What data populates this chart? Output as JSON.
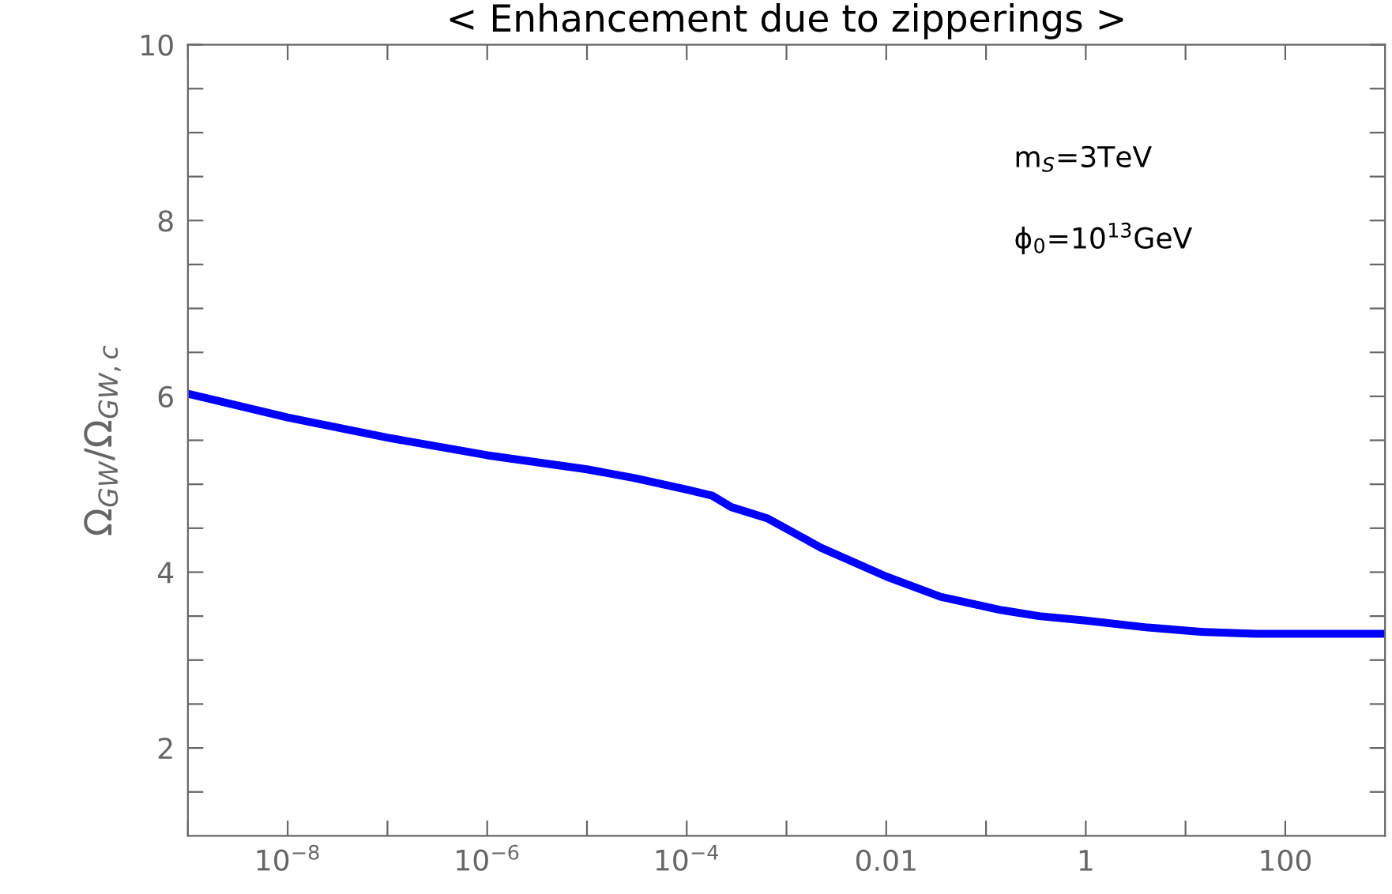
{
  "chart_data": {
    "type": "line",
    "title": "< Enhancement due to zipperings >",
    "ylabel": "Ω$_{GW}$/Ω$_{GW,c}$",
    "log": "x",
    "xlim": [
      1e-09,
      1000
    ],
    "ylim": [
      1,
      10
    ],
    "xticks": [
      {
        "value": 1e-09,
        "label": null
      },
      {
        "value": 1e-08,
        "label": "10$^{−8}$"
      },
      {
        "value": 1e-07,
        "label": null
      },
      {
        "value": 1e-06,
        "label": "10$^{−6}$"
      },
      {
        "value": 1e-05,
        "label": null
      },
      {
        "value": 0.0001,
        "label": "10$^{−4}$"
      },
      {
        "value": 0.001,
        "label": null
      },
      0.01,
      {
        "value": 0.1,
        "label": null
      },
      1,
      {
        "value": 10,
        "label": null
      },
      100
    ],
    "yticks": [
      {
        "value": 1.5,
        "label": null
      },
      2,
      {
        "value": 2.5,
        "label": null
      },
      {
        "value": 3,
        "label": null
      },
      {
        "value": 3.5,
        "label": null
      },
      4,
      {
        "value": 4.5,
        "label": null
      },
      {
        "value": 5,
        "label": null
      },
      {
        "value": 5.5,
        "label": null
      },
      6,
      {
        "value": 6.5,
        "label": null
      },
      {
        "value": 7,
        "label": null
      },
      {
        "value": 7.5,
        "label": null
      },
      8,
      {
        "value": 8.5,
        "label": null
      },
      {
        "value": 9,
        "label": null
      },
      {
        "value": 9.5,
        "label": null
      },
      10
    ],
    "grid": false,
    "legend": false,
    "marker": "none",
    "line_style": "solid",
    "annotations": [
      "m$_{S}$=3TeV",
      "ϕ$_{0}$=10$^{13}$GeV"
    ],
    "series": [
      {
        "color": "#0000ff",
        "x": [
          1e-09,
          1e-08,
          1e-07,
          1e-06,
          1e-05,
          3e-05,
          0.0001,
          0.00018,
          0.00028,
          0.00065,
          0.0022,
          0.01,
          0.035,
          0.14,
          0.34,
          1,
          4.2,
          15,
          51,
          100,
          1000
        ],
        "values": [
          6.03,
          5.76,
          5.53,
          5.33,
          5.17,
          5.07,
          4.94,
          4.87,
          4.74,
          4.61,
          4.28,
          3.95,
          3.72,
          3.57,
          3.5,
          3.45,
          3.37,
          3.32,
          3.3,
          3.3,
          3.3
        ]
      }
    ]
  }
}
